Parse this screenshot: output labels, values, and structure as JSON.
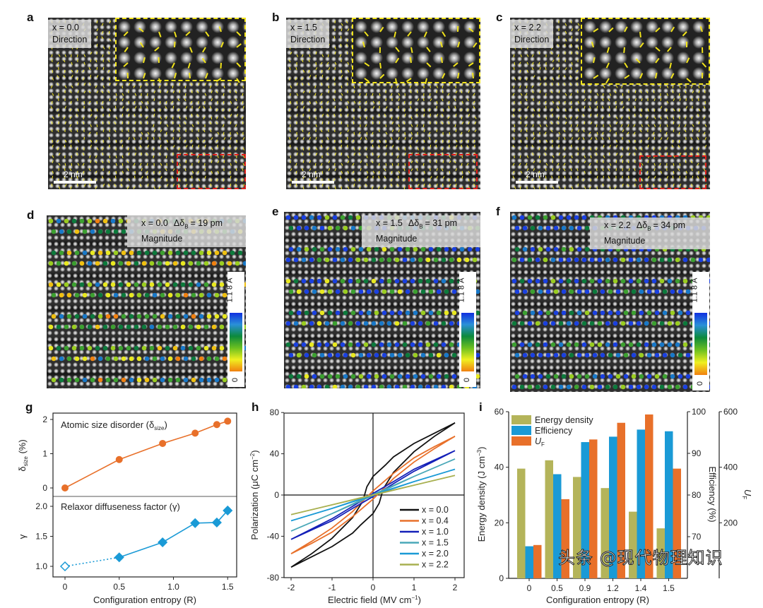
{
  "panels_top": [
    {
      "label": "a",
      "x_label": "x = 0.0",
      "mode": "Direction",
      "scale": "2 nm"
    },
    {
      "label": "b",
      "x_label": "x = 1.5",
      "mode": "Direction",
      "scale": "2 nm"
    },
    {
      "label": "c",
      "x_label": "x = 2.2",
      "mode": "Direction",
      "scale": "2 nm"
    }
  ],
  "panels_mid": [
    {
      "label": "d",
      "x_label": "x = 0.0",
      "delta": "Δδ",
      "delta_sub": "B",
      "delta_val": "= 19 pm",
      "mode": "Magnitude",
      "cbar_max": "1.1 8 Å",
      "cbar_min": "0"
    },
    {
      "label": "e",
      "x_label": "x = 1.5",
      "delta": "Δδ",
      "delta_sub": "B",
      "delta_val": "= 31 pm",
      "mode": "Magnitude",
      "cbar_max": "1.1 8 Å",
      "cbar_min": "0"
    },
    {
      "label": "f",
      "x_label": "x = 2.2",
      "delta": "Δδ",
      "delta_sub": "B",
      "delta_val": "= 34 pm",
      "mode": "Magnitude",
      "cbar_max": "1.1 8 Å",
      "cbar_min": "0"
    }
  ],
  "colors": {
    "arrow": "#f1e31b",
    "inset_border": "#f1e31b",
    "roi_border": "#e0201b",
    "orange": "#e8702a",
    "blue": "#1a9ad6",
    "olive": "#b4b45a"
  },
  "watermark": "头条 @现代物理知识",
  "chart_data": [
    {
      "panel": "g",
      "type": "line",
      "xlabel": "Configuration entropy (R)",
      "xticks": [
        "0",
        "0.5",
        "1.0",
        "1.5"
      ],
      "xlim": [
        -0.1,
        1.6
      ],
      "subplots": [
        {
          "title": "Atomic size disorder (δ",
          "title_sub": "size",
          "title_end": ")",
          "ylabel": "δ",
          "ylabel_sub": "size",
          "ylabel_end": " (%)",
          "yticks": [
            "0",
            "1",
            "2"
          ],
          "ylim": [
            -0.25,
            2.15
          ],
          "color": "#e8702a",
          "marker": "circle",
          "x": [
            0,
            0.5,
            0.9,
            1.2,
            1.4,
            1.5
          ],
          "y": [
            0,
            0.83,
            1.3,
            1.6,
            1.85,
            1.95
          ]
        },
        {
          "title": "Relaxor diffuseness factor (γ)",
          "ylabel": "γ",
          "yticks": [
            "1.0",
            "1.5",
            "2.0"
          ],
          "ylim": [
            0.85,
            2.2
          ],
          "color": "#1a9ad6",
          "marker": "diamond",
          "x": [
            0,
            0.5,
            0.9,
            1.2,
            1.4,
            1.5
          ],
          "y": [
            1.0,
            1.15,
            1.4,
            1.72,
            1.73,
            1.93
          ],
          "open_first": true,
          "dotted_first_segment": true
        }
      ]
    },
    {
      "panel": "h",
      "type": "line",
      "xlabel": "Electric field (MV cm",
      "xlabel_sup": "−1",
      "xlabel_end": ")",
      "ylabel": "Polarization (μC cm",
      "ylabel_sup": "−2",
      "ylabel_end": ")",
      "xticks": [
        "-2",
        "-1",
        "0",
        "1",
        "2"
      ],
      "yticks": [
        "80",
        "40",
        "0",
        "-40",
        "-80"
      ],
      "xlim": [
        -2.2,
        2.2
      ],
      "ylim": [
        -80,
        80
      ],
      "legend": "bottom-right",
      "series": [
        {
          "name": "x = 0.0",
          "color": "#111111",
          "upper_branch": [
            [
              -2,
              -70
            ],
            [
              -1.5,
              -57
            ],
            [
              -1,
              -42
            ],
            [
              -0.5,
              -22
            ],
            [
              -0.25,
              -6
            ],
            [
              -0.15,
              8
            ],
            [
              0,
              18
            ],
            [
              0.3,
              29
            ],
            [
              0.5,
              37
            ],
            [
              1,
              50
            ],
            [
              1.5,
              60
            ],
            [
              2,
              70
            ]
          ]
        },
        {
          "name": "x = 0.4",
          "color": "#e8702a",
          "upper_branch": [
            [
              -2,
              -57
            ],
            [
              -1.5,
              -45
            ],
            [
              -1,
              -32
            ],
            [
              -0.5,
              -16
            ],
            [
              -0.15,
              -2
            ],
            [
              0,
              4
            ],
            [
              0.5,
              21
            ],
            [
              1,
              36
            ],
            [
              1.5,
              47
            ],
            [
              2,
              57
            ]
          ]
        },
        {
          "name": "x = 1.0",
          "color": "#1420b8",
          "upper_branch": [
            [
              -2,
              -43
            ],
            [
              -1.5,
              -33
            ],
            [
              -1,
              -23
            ],
            [
              -0.5,
              -11
            ],
            [
              0,
              1.5
            ],
            [
              0.5,
              13
            ],
            [
              1,
              25
            ],
            [
              1.5,
              34
            ],
            [
              2,
              43
            ]
          ]
        },
        {
          "name": "x = 1.5",
          "color": "#4aa8b8",
          "upper_branch": [
            [
              -2,
              -35
            ],
            [
              -1,
              -18
            ],
            [
              0,
              0.5
            ],
            [
              1,
              18
            ],
            [
              2,
              35
            ]
          ]
        },
        {
          "name": "x = 2.0",
          "color": "#1a9ad6",
          "upper_branch": [
            [
              -2,
              -25
            ],
            [
              -1,
              -13
            ],
            [
              0,
              0.3
            ],
            [
              1,
              13
            ],
            [
              2,
              25
            ]
          ]
        },
        {
          "name": "x = 2.2",
          "color": "#a8b050",
          "upper_branch": [
            [
              -2,
              -19
            ],
            [
              -1,
              -9.5
            ],
            [
              0,
              0.2
            ],
            [
              1,
              9.5
            ],
            [
              2,
              19
            ]
          ]
        }
      ]
    },
    {
      "panel": "i",
      "type": "bar",
      "xlabel": "Configuration entropy (R)",
      "categories": [
        "0",
        "0.5",
        "0.9",
        "1.2",
        "1.4",
        "1.5"
      ],
      "legend": "top-left",
      "axes": {
        "left": {
          "label": "Energy density (J cm",
          "sup": "−3",
          "end": ")",
          "ylim": [
            0,
            60
          ],
          "yticks": [
            "0",
            "20",
            "40",
            "60"
          ]
        },
        "right1": {
          "label": "Efficiency (%)",
          "ylim": [
            60,
            100
          ],
          "yticks": [
            "70",
            "80",
            "90",
            "100"
          ]
        },
        "right2": {
          "label": "U",
          "sub": "F",
          "ylim": [
            0,
            600
          ],
          "yticks": [
            "200",
            "400",
            "600"
          ]
        }
      },
      "series": [
        {
          "name": "Energy density",
          "axis": "left",
          "color": "#b4b45a",
          "values": [
            39.5,
            42.5,
            36.5,
            32.5,
            24,
            18
          ]
        },
        {
          "name": "Efficiency",
          "axis": "right1",
          "color": "#1a9ad6",
          "values": [
            67.7,
            85,
            92.7,
            94,
            95.7,
            95.3
          ]
        },
        {
          "name": "U",
          "name_sub": "F",
          "axis": "right2",
          "color": "#e8702a",
          "values": [
            120,
            285,
            500,
            560,
            590,
            395
          ]
        }
      ]
    }
  ]
}
